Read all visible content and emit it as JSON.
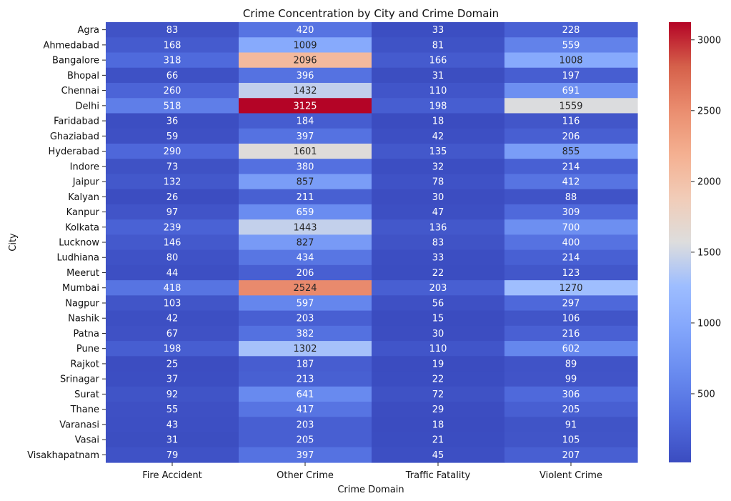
{
  "chart_data": {
    "type": "heatmap",
    "title": "Crime Concentration by City and Crime Domain",
    "xlabel": "Crime Domain",
    "ylabel": "City",
    "columns": [
      "Fire Accident",
      "Other Crime",
      "Traffic Fatality",
      "Violent Crime"
    ],
    "rows": [
      "Agra",
      "Ahmedabad",
      "Bangalore",
      "Bhopal",
      "Chennai",
      "Delhi",
      "Faridabad",
      "Ghaziabad",
      "Hyderabad",
      "Indore",
      "Jaipur",
      "Kalyan",
      "Kanpur",
      "Kolkata",
      "Lucknow",
      "Ludhiana",
      "Meerut",
      "Mumbai",
      "Nagpur",
      "Nashik",
      "Patna",
      "Pune",
      "Rajkot",
      "Srinagar",
      "Surat",
      "Thane",
      "Varanasi",
      "Vasai",
      "Visakhapatnam"
    ],
    "values": [
      [
        83,
        420,
        33,
        228
      ],
      [
        168,
        1009,
        81,
        559
      ],
      [
        318,
        2096,
        166,
        1008
      ],
      [
        66,
        396,
        31,
        197
      ],
      [
        260,
        1432,
        110,
        691
      ],
      [
        518,
        3125,
        198,
        1559
      ],
      [
        36,
        184,
        18,
        116
      ],
      [
        59,
        397,
        42,
        206
      ],
      [
        290,
        1601,
        135,
        855
      ],
      [
        73,
        380,
        32,
        214
      ],
      [
        132,
        857,
        78,
        412
      ],
      [
        26,
        211,
        30,
        88
      ],
      [
        97,
        659,
        47,
        309
      ],
      [
        239,
        1443,
        136,
        700
      ],
      [
        146,
        827,
        83,
        400
      ],
      [
        80,
        434,
        33,
        214
      ],
      [
        44,
        206,
        22,
        123
      ],
      [
        418,
        2524,
        203,
        1270
      ],
      [
        103,
        597,
        56,
        297
      ],
      [
        42,
        203,
        15,
        106
      ],
      [
        67,
        382,
        30,
        216
      ],
      [
        198,
        1302,
        110,
        602
      ],
      [
        25,
        187,
        19,
        89
      ],
      [
        37,
        213,
        22,
        99
      ],
      [
        92,
        641,
        72,
        306
      ],
      [
        55,
        417,
        29,
        205
      ],
      [
        43,
        203,
        18,
        91
      ],
      [
        31,
        205,
        21,
        105
      ],
      [
        79,
        397,
        45,
        207
      ]
    ],
    "colormap": "coolwarm",
    "color_range": [
      15,
      3125
    ],
    "colorbar_ticks": [
      500,
      1000,
      1500,
      2000,
      2500,
      3000
    ],
    "annotate": true
  }
}
